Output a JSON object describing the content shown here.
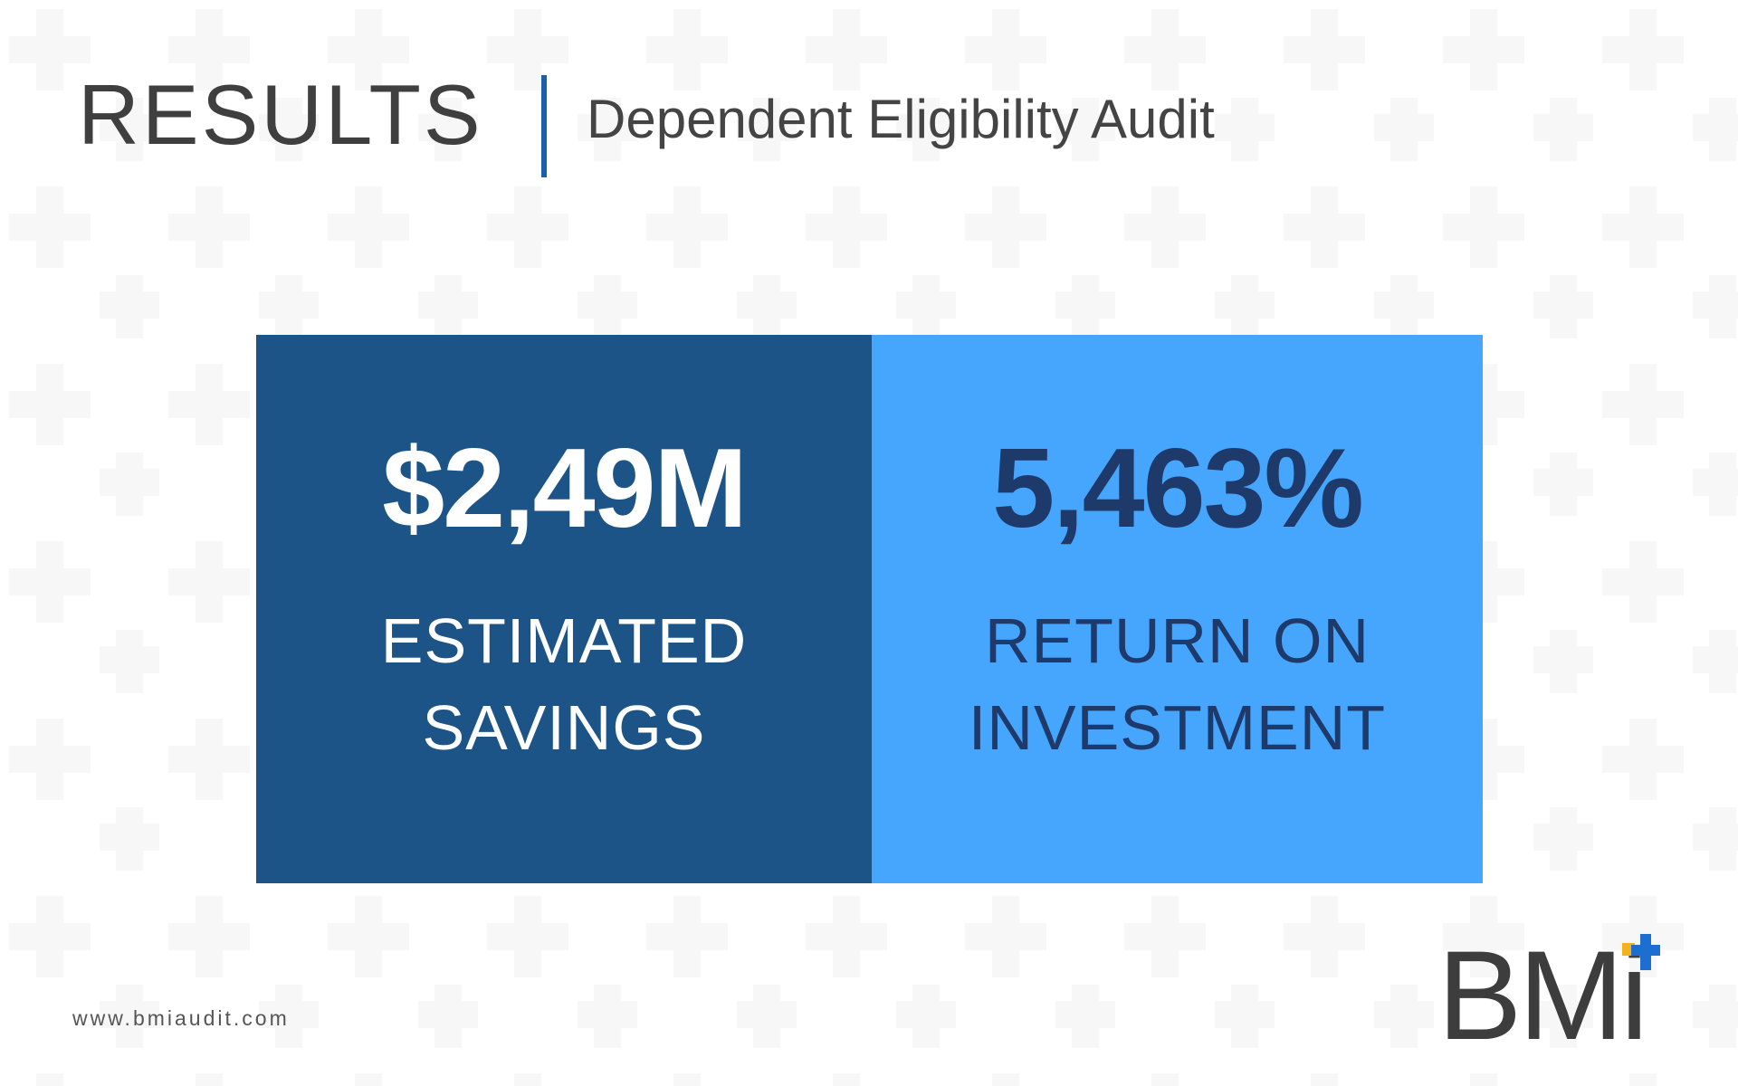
{
  "header": {
    "title": "RESULTS",
    "subtitle": "Dependent Eligibility Audit"
  },
  "stats": [
    {
      "value": "$2,49M",
      "label": "ESTIMATED SAVINGS"
    },
    {
      "value": "5,463%",
      "label": "RETURN ON INVESTMENT"
    }
  ],
  "footer": {
    "url": "www.bmiaudit.com"
  },
  "logo": {
    "text": "BMi"
  }
}
